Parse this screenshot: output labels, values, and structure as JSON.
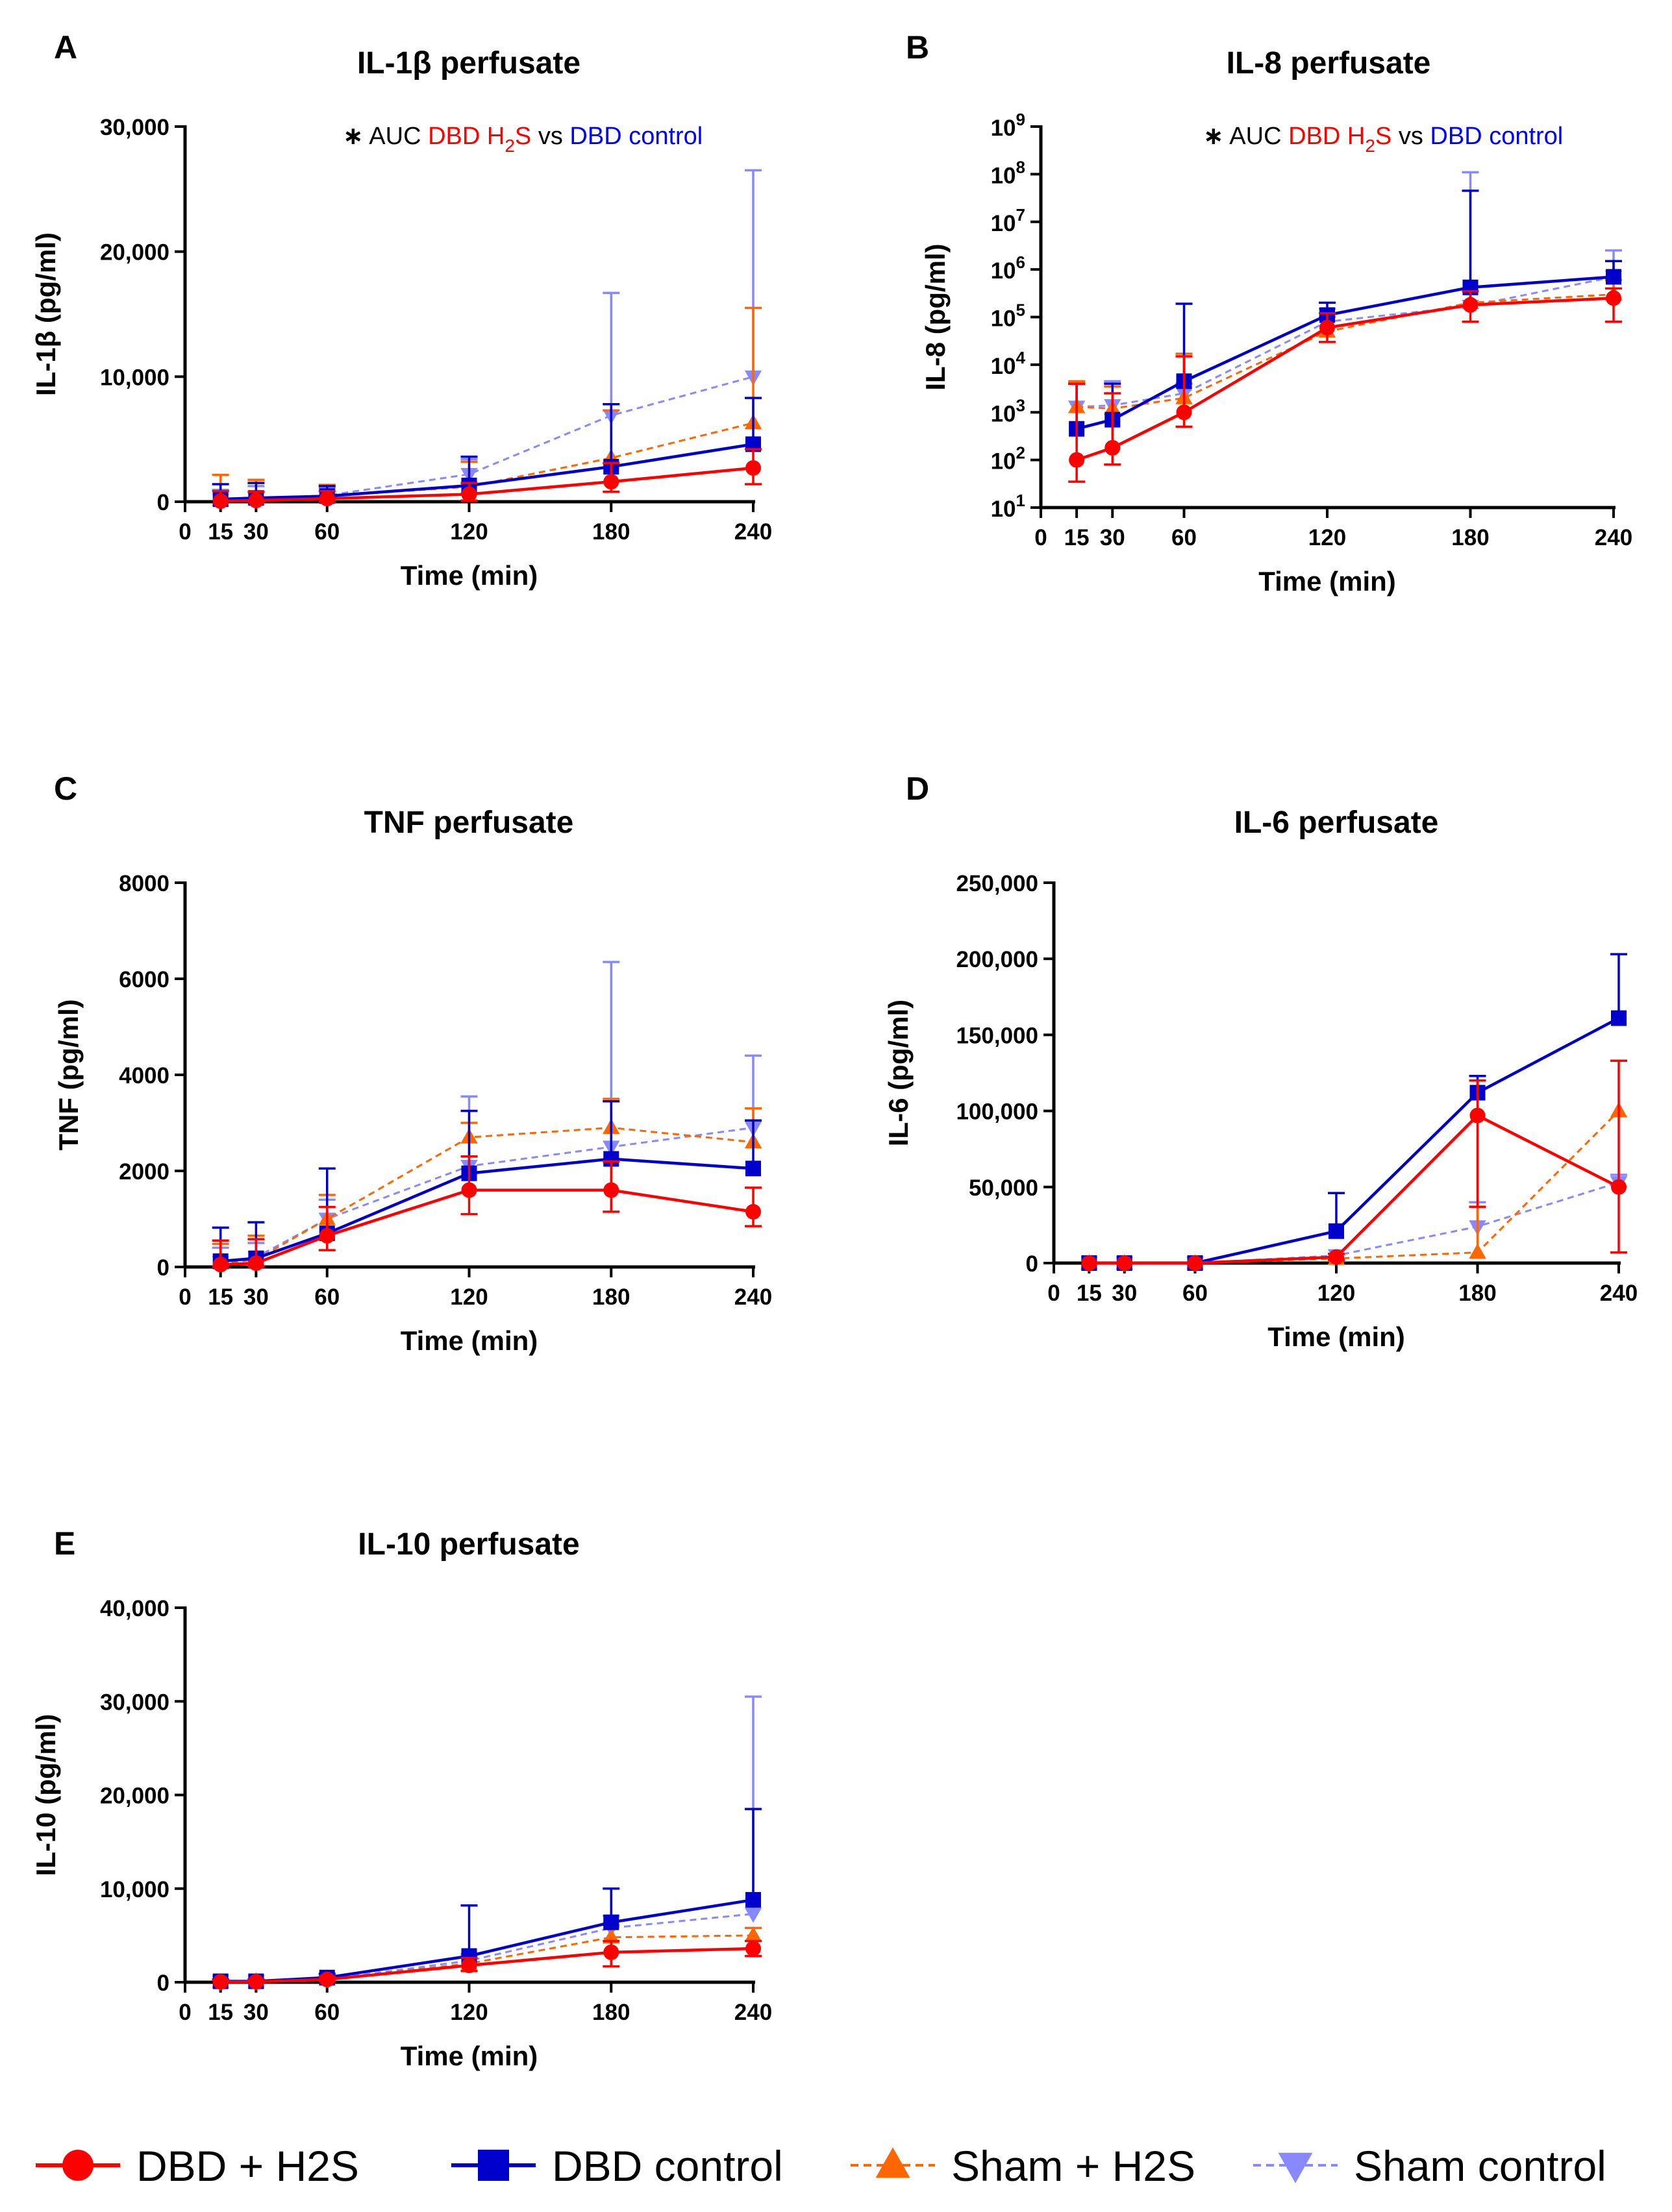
{
  "figure": {
    "legend": [
      {
        "label": "DBD + H2S",
        "color": "#ff0000",
        "marker": "circle",
        "dash": false
      },
      {
        "label": "DBD control",
        "color": "#0000cc",
        "marker": "square",
        "dash": false
      },
      {
        "label": "Sham + H2S",
        "color": "#ff6600",
        "marker": "triangle-up",
        "dash": true
      },
      {
        "label": "Sham control",
        "color": "#8888ff",
        "marker": "triangle-down",
        "dash": true
      }
    ]
  },
  "chart_data": [
    {
      "type": "line",
      "panel": "A",
      "title": "IL-1β perfusate",
      "xlabel": "Time (min)",
      "ylabel": "IL-1β (pg/ml)",
      "scale": "linear",
      "ylim": [
        0,
        30000
      ],
      "xlim": [
        0,
        240
      ],
      "xticks": [
        0,
        15,
        30,
        60,
        120,
        180,
        240
      ],
      "yticks": [
        0,
        10000,
        20000,
        30000
      ],
      "ytick_labels": [
        "0",
        "10,000",
        "20,000",
        "30,000"
      ],
      "annotation": {
        "star": "∗",
        "prefix": "AUC",
        "h2s_pre": "DBD H",
        "h2s_sub": "2",
        "h2s_post": "S",
        "mid": "vs",
        "ctrl": "DBD control"
      },
      "x": [
        15,
        30,
        60,
        120,
        180,
        240
      ],
      "series": [
        {
          "name": "DBD + H2S",
          "values": [
            50,
            100,
            250,
            600,
            1600,
            2700
          ],
          "upper_err": [
            800,
            700,
            600,
            900,
            1500,
            1500
          ],
          "lower_err": [
            50,
            100,
            250,
            500,
            800,
            1300
          ]
        },
        {
          "name": "DBD control",
          "values": [
            200,
            300,
            450,
            1300,
            2800,
            4600
          ],
          "upper_err": [
            1200,
            1200,
            800,
            2300,
            5000,
            3700
          ],
          "lower_err": [
            0,
            0,
            0,
            0,
            0,
            0
          ]
        },
        {
          "name": "Sham + H2S",
          "values": [
            150,
            250,
            450,
            1200,
            3500,
            6300
          ],
          "upper_err": [
            2000,
            1500,
            900,
            2000,
            3800,
            9200
          ],
          "lower_err": [
            0,
            0,
            0,
            0,
            0,
            0
          ]
        },
        {
          "name": "Sham control",
          "values": [
            150,
            250,
            500,
            2200,
            6900,
            10000
          ],
          "upper_err": [
            800,
            1000,
            600,
            1200,
            9800,
            16500
          ],
          "lower_err": [
            0,
            0,
            0,
            0,
            0,
            0
          ]
        }
      ]
    },
    {
      "type": "line",
      "panel": "B",
      "title": "IL-8 perfusate",
      "xlabel": "Time (min)",
      "ylabel": "IL-8 (pg/ml)",
      "scale": "log",
      "ylim": [
        10,
        1000000000
      ],
      "xlim": [
        0,
        240
      ],
      "xticks": [
        0,
        15,
        30,
        60,
        120,
        180,
        240
      ],
      "yticks_exp": [
        1,
        2,
        3,
        4,
        5,
        6,
        7,
        8,
        9
      ],
      "ytick_base": "10",
      "annotation": {
        "star": "∗",
        "prefix": "AUC",
        "h2s_pre": "DBD H",
        "h2s_sub": "2",
        "h2s_post": "S",
        "mid": "vs",
        "ctrl": "DBD control"
      },
      "x": [
        15,
        30,
        60,
        120,
        180,
        240
      ],
      "series": [
        {
          "name": "DBD + H2S",
          "values": [
            100,
            180,
            1000,
            60000,
            180000,
            250000
          ],
          "upper": [
            4000,
            2500,
            15000,
            120000,
            350000,
            400000
          ],
          "lower": [
            35,
            80,
            500,
            30000,
            80000,
            80000
          ]
        },
        {
          "name": "DBD control",
          "values": [
            450,
            700,
            4500,
            110000,
            420000,
            700000
          ],
          "upper": [
            4000,
            4000,
            190000,
            200000,
            45000000,
            1500000
          ],
          "lower": [
            450,
            700,
            4500,
            110000,
            420000,
            700000
          ]
        },
        {
          "name": "Sham + H2S",
          "values": [
            1300,
            1200,
            2000,
            50000,
            200000,
            300000
          ],
          "upper": [
            4500,
            3500,
            17000,
            100000,
            350000,
            600000
          ],
          "lower": [
            1300,
            1200,
            2000,
            50000,
            200000,
            300000
          ]
        },
        {
          "name": "Sham control",
          "values": [
            1300,
            1400,
            2500,
            80000,
            170000,
            700000
          ],
          "upper": [
            4000,
            4500,
            4000,
            150000,
            110000000,
            2500000
          ],
          "lower": [
            1300,
            1400,
            2500,
            80000,
            170000,
            700000
          ]
        }
      ]
    },
    {
      "type": "line",
      "panel": "C",
      "title": "TNF perfusate",
      "xlabel": "Time (min)",
      "ylabel": "TNF (pg/ml)",
      "scale": "linear",
      "ylim": [
        0,
        8000
      ],
      "xlim": [
        0,
        240
      ],
      "xticks": [
        0,
        15,
        30,
        60,
        120,
        180,
        240
      ],
      "yticks": [
        0,
        2000,
        4000,
        6000,
        8000
      ],
      "ytick_labels": [
        "0",
        "2000",
        "4000",
        "6000",
        "8000"
      ],
      "x": [
        15,
        30,
        60,
        120,
        180,
        240
      ],
      "series": [
        {
          "name": "DBD + H2S",
          "values": [
            50,
            80,
            650,
            1600,
            1600,
            1150
          ],
          "upper_err": [
            500,
            500,
            600,
            700,
            600,
            500
          ],
          "lower_err": [
            50,
            80,
            300,
            500,
            450,
            300
          ]
        },
        {
          "name": "DBD control",
          "values": [
            120,
            180,
            700,
            1950,
            2250,
            2050
          ],
          "upper_err": [
            700,
            750,
            1350,
            1300,
            1200,
            1000
          ],
          "lower_err": [
            0,
            0,
            0,
            0,
            0,
            0
          ]
        },
        {
          "name": "Sham + H2S",
          "values": [
            80,
            150,
            1000,
            2700,
            2900,
            2600
          ],
          "upper_err": [
            400,
            500,
            500,
            300,
            600,
            700
          ],
          "lower_err": [
            0,
            0,
            0,
            0,
            0,
            0
          ]
        },
        {
          "name": "Sham control",
          "values": [
            100,
            200,
            1000,
            2100,
            2500,
            2900
          ],
          "upper_err": [
            300,
            300,
            400,
            1450,
            3850,
            1500
          ],
          "lower_err": [
            0,
            0,
            0,
            0,
            0,
            0
          ]
        }
      ]
    },
    {
      "type": "line",
      "panel": "D",
      "title": "IL-6 perfusate",
      "xlabel": "Time (min)",
      "ylabel": "IL-6 (pg/ml)",
      "scale": "linear",
      "ylim": [
        0,
        250000
      ],
      "xlim": [
        0,
        240
      ],
      "xticks": [
        0,
        15,
        30,
        60,
        120,
        180,
        240
      ],
      "yticks": [
        0,
        50000,
        100000,
        150000,
        200000,
        250000
      ],
      "ytick_labels": [
        "0",
        "50,000",
        "100,000",
        "150,000",
        "200,000",
        "250,000"
      ],
      "x": [
        15,
        30,
        60,
        120,
        180,
        240
      ],
      "series": [
        {
          "name": "DBD + H2S",
          "values": [
            0,
            0,
            0,
            4000,
            97000,
            50000
          ],
          "upper_err": [
            0,
            0,
            0,
            2000,
            23000,
            83000
          ],
          "lower_err": [
            0,
            0,
            0,
            2000,
            60000,
            43000
          ]
        },
        {
          "name": "DBD control",
          "values": [
            0,
            0,
            0,
            21000,
            112000,
            161000
          ],
          "upper_err": [
            0,
            0,
            0,
            25000,
            11000,
            42000
          ],
          "lower_err": [
            0,
            0,
            0,
            0,
            0,
            0
          ]
        },
        {
          "name": "Sham + H2S",
          "values": [
            0,
            0,
            0,
            3000,
            7000,
            100000
          ],
          "upper_err": [
            0,
            0,
            0,
            0,
            30000,
            0
          ],
          "lower_err": [
            0,
            0,
            0,
            0,
            0,
            0
          ]
        },
        {
          "name": "Sham control",
          "values": [
            0,
            0,
            0,
            5000,
            24000,
            53000
          ],
          "upper_err": [
            0,
            0,
            0,
            0,
            16000,
            5000
          ],
          "lower_err": [
            0,
            0,
            0,
            0,
            0,
            0
          ]
        }
      ]
    },
    {
      "type": "line",
      "panel": "E",
      "title": "IL-10 perfusate",
      "xlabel": "Time (min)",
      "ylabel": "IL-10 (pg/ml)",
      "scale": "linear",
      "ylim": [
        0,
        40000
      ],
      "xlim": [
        0,
        240
      ],
      "xticks": [
        0,
        15,
        30,
        60,
        120,
        180,
        240
      ],
      "yticks": [
        0,
        10000,
        20000,
        30000,
        40000
      ],
      "ytick_labels": [
        "0",
        "10,000",
        "20,000",
        "30,000",
        "40,000"
      ],
      "x": [
        15,
        30,
        60,
        120,
        180,
        240
      ],
      "series": [
        {
          "name": "DBD + H2S",
          "values": [
            50,
            60,
            300,
            1800,
            3200,
            3600
          ],
          "upper_err": [
            200,
            200,
            300,
            800,
            1200,
            800
          ],
          "lower_err": [
            50,
            60,
            200,
            600,
            1500,
            800
          ]
        },
        {
          "name": "DBD control",
          "values": [
            100,
            100,
            500,
            2800,
            6400,
            8800
          ],
          "upper_err": [
            200,
            200,
            400,
            5400,
            3600,
            9700
          ],
          "lower_err": [
            0,
            0,
            0,
            0,
            0,
            0
          ]
        },
        {
          "name": "Sham + H2S",
          "values": [
            60,
            80,
            300,
            2000,
            4800,
            5000
          ],
          "upper_err": [
            200,
            200,
            300,
            700,
            1300,
            800
          ],
          "lower_err": [
            0,
            0,
            0,
            0,
            0,
            0
          ]
        },
        {
          "name": "Sham control",
          "values": [
            60,
            80,
            300,
            2300,
            5800,
            7300
          ],
          "upper_err": [
            200,
            200,
            300,
            700,
            1300,
            23200
          ],
          "lower_err": [
            0,
            0,
            0,
            0,
            0,
            0
          ]
        }
      ]
    }
  ]
}
